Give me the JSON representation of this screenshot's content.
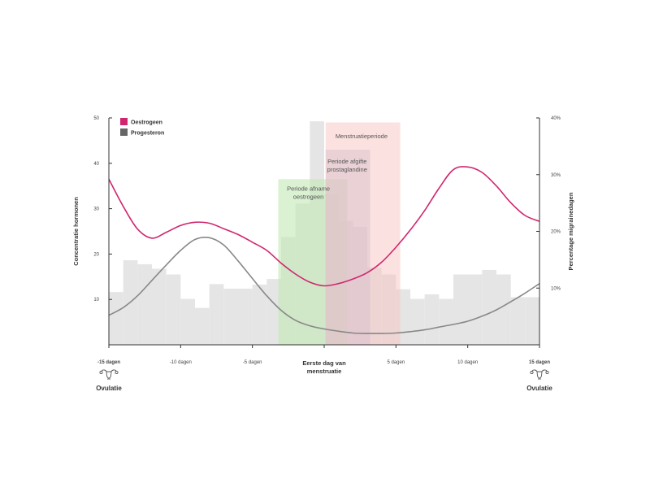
{
  "chart_data": {
    "type": "line",
    "legend": [
      {
        "label": "Oestrogeen",
        "color": "#d0266f"
      },
      {
        "label": "Progesteron",
        "color": "#666666"
      }
    ],
    "left_axis": {
      "label": "Concentratie hormonen",
      "ticks": [
        10,
        20,
        30,
        40,
        50
      ],
      "range": [
        0,
        50
      ]
    },
    "right_axis": {
      "label": "Percentage migrainedagen",
      "ticks": [
        "10%",
        "20%",
        "30%",
        "40%"
      ],
      "values": [
        10,
        20,
        30,
        40
      ],
      "range": [
        0,
        40
      ]
    },
    "x_axis": {
      "range": [
        -15,
        15
      ],
      "ticks": [
        {
          "value": -15,
          "label": "-15 dagen",
          "bold": true
        },
        {
          "value": -10,
          "label": "-10 dagen",
          "bold": false
        },
        {
          "value": -5,
          "label": "-5 dagen",
          "bold": false
        },
        {
          "value": 5,
          "label": "5 dagen",
          "bold": false
        },
        {
          "value": 10,
          "label": "10 dagen",
          "bold": false
        },
        {
          "value": 15,
          "label": "15 dagen",
          "bold": true
        }
      ],
      "center_label": [
        "Eerste dag van",
        "menstruatie"
      ]
    },
    "ovulation_label": "Ovulatie",
    "migraine_percent": [
      {
        "from": -15,
        "to": -14,
        "value": 9.3
      },
      {
        "from": -14,
        "to": -13,
        "value": 14.9
      },
      {
        "from": -13,
        "to": -12,
        "value": 14.2
      },
      {
        "from": -12,
        "to": -11,
        "value": 13.4
      },
      {
        "from": -11,
        "to": -10,
        "value": 12.4
      },
      {
        "from": -10,
        "to": -9,
        "value": 8.1
      },
      {
        "from": -9,
        "to": -8,
        "value": 6.5
      },
      {
        "from": -8,
        "to": -7,
        "value": 10.7
      },
      {
        "from": -7,
        "to": -5,
        "value": 9.9
      },
      {
        "from": -5,
        "to": -4,
        "value": 10.6
      },
      {
        "from": -4,
        "to": -3,
        "value": 11.6
      },
      {
        "from": -3,
        "to": -2,
        "value": 19.0
      },
      {
        "from": -2,
        "to": -1,
        "value": 24.9
      },
      {
        "from": -1,
        "to": 0,
        "value": 39.4
      },
      {
        "from": 0,
        "to": 1,
        "value": 26.6
      },
      {
        "from": 1,
        "to": 2,
        "value": 21.8
      },
      {
        "from": 2,
        "to": 3,
        "value": 20.8
      },
      {
        "from": 3,
        "to": 4,
        "value": 13.6
      },
      {
        "from": 4,
        "to": 5,
        "value": 12.4
      },
      {
        "from": 5,
        "to": 6,
        "value": 9.8
      },
      {
        "from": 6,
        "to": 7,
        "value": 8.1
      },
      {
        "from": 7,
        "to": 8,
        "value": 8.9
      },
      {
        "from": 8,
        "to": 9,
        "value": 8.1
      },
      {
        "from": 9,
        "to": 11,
        "value": 12.4
      },
      {
        "from": 11,
        "to": 12,
        "value": 13.2
      },
      {
        "from": 12,
        "to": 13,
        "value": 12.4
      },
      {
        "from": 13,
        "to": 14,
        "value": 8.4
      },
      {
        "from": 14,
        "to": 15,
        "value": 8.4
      }
    ],
    "series": [
      {
        "name": "Oestrogeen",
        "color": "#d0266f",
        "x": [
          -15,
          -14,
          -13,
          -12,
          -11,
          -10,
          -9,
          -8,
          -7,
          -6,
          -5,
          -4,
          -3,
          -2,
          -1,
          0,
          1,
          2,
          3,
          4,
          5,
          6,
          7,
          8,
          9,
          10,
          11,
          12,
          13,
          14,
          15
        ],
        "values": [
          36.5,
          30.5,
          25.5,
          23.5,
          24.8,
          26.3,
          27.0,
          26.8,
          25.6,
          24.3,
          22.6,
          20.8,
          18.0,
          15.6,
          13.8,
          13.0,
          13.5,
          14.5,
          15.9,
          18.2,
          21.5,
          25.3,
          29.6,
          34.5,
          38.6,
          39.2,
          38.0,
          35.0,
          31.3,
          28.5,
          27.2
        ]
      },
      {
        "name": "Progesteron",
        "color": "#888888",
        "x": [
          -15,
          -14,
          -13,
          -12,
          -11,
          -10,
          -9,
          -8,
          -7,
          -6,
          -5,
          -4,
          -3,
          -2,
          -1,
          0,
          1,
          2,
          3,
          4,
          5,
          6,
          7,
          8,
          9,
          10,
          11,
          12,
          13,
          14,
          15
        ],
        "values": [
          6.5,
          8.2,
          10.8,
          14.2,
          17.6,
          20.8,
          23.2,
          23.6,
          22.0,
          18.5,
          14.6,
          10.8,
          7.6,
          5.4,
          4.2,
          3.5,
          3.0,
          2.6,
          2.5,
          2.5,
          2.6,
          2.9,
          3.3,
          3.9,
          4.5,
          5.2,
          6.3,
          7.7,
          9.5,
          11.4,
          13.5
        ]
      }
    ],
    "bands": [
      {
        "label": [
          "Periode afname",
          "oestrogeen"
        ],
        "from": -3.2,
        "to": 1.6,
        "top": 36.5,
        "fill": "#c2e8b4",
        "opacity": 0.6,
        "label_x": -1.1,
        "label_y": 34.0
      },
      {
        "label": [
          "Periode afgifte",
          "prostaglandine"
        ],
        "from": 0.1,
        "to": 3.2,
        "top": 43.0,
        "fill": "#b8b9d8",
        "opacity": 0.5,
        "label_x": 1.6,
        "label_y": 40.0
      },
      {
        "label": [
          "Menstruatieperiode"
        ],
        "from": 0.1,
        "to": 5.3,
        "top": 49.0,
        "fill": "#f7c6c2",
        "opacity": 0.5,
        "label_x": 2.6,
        "label_y": 45.5
      }
    ]
  }
}
